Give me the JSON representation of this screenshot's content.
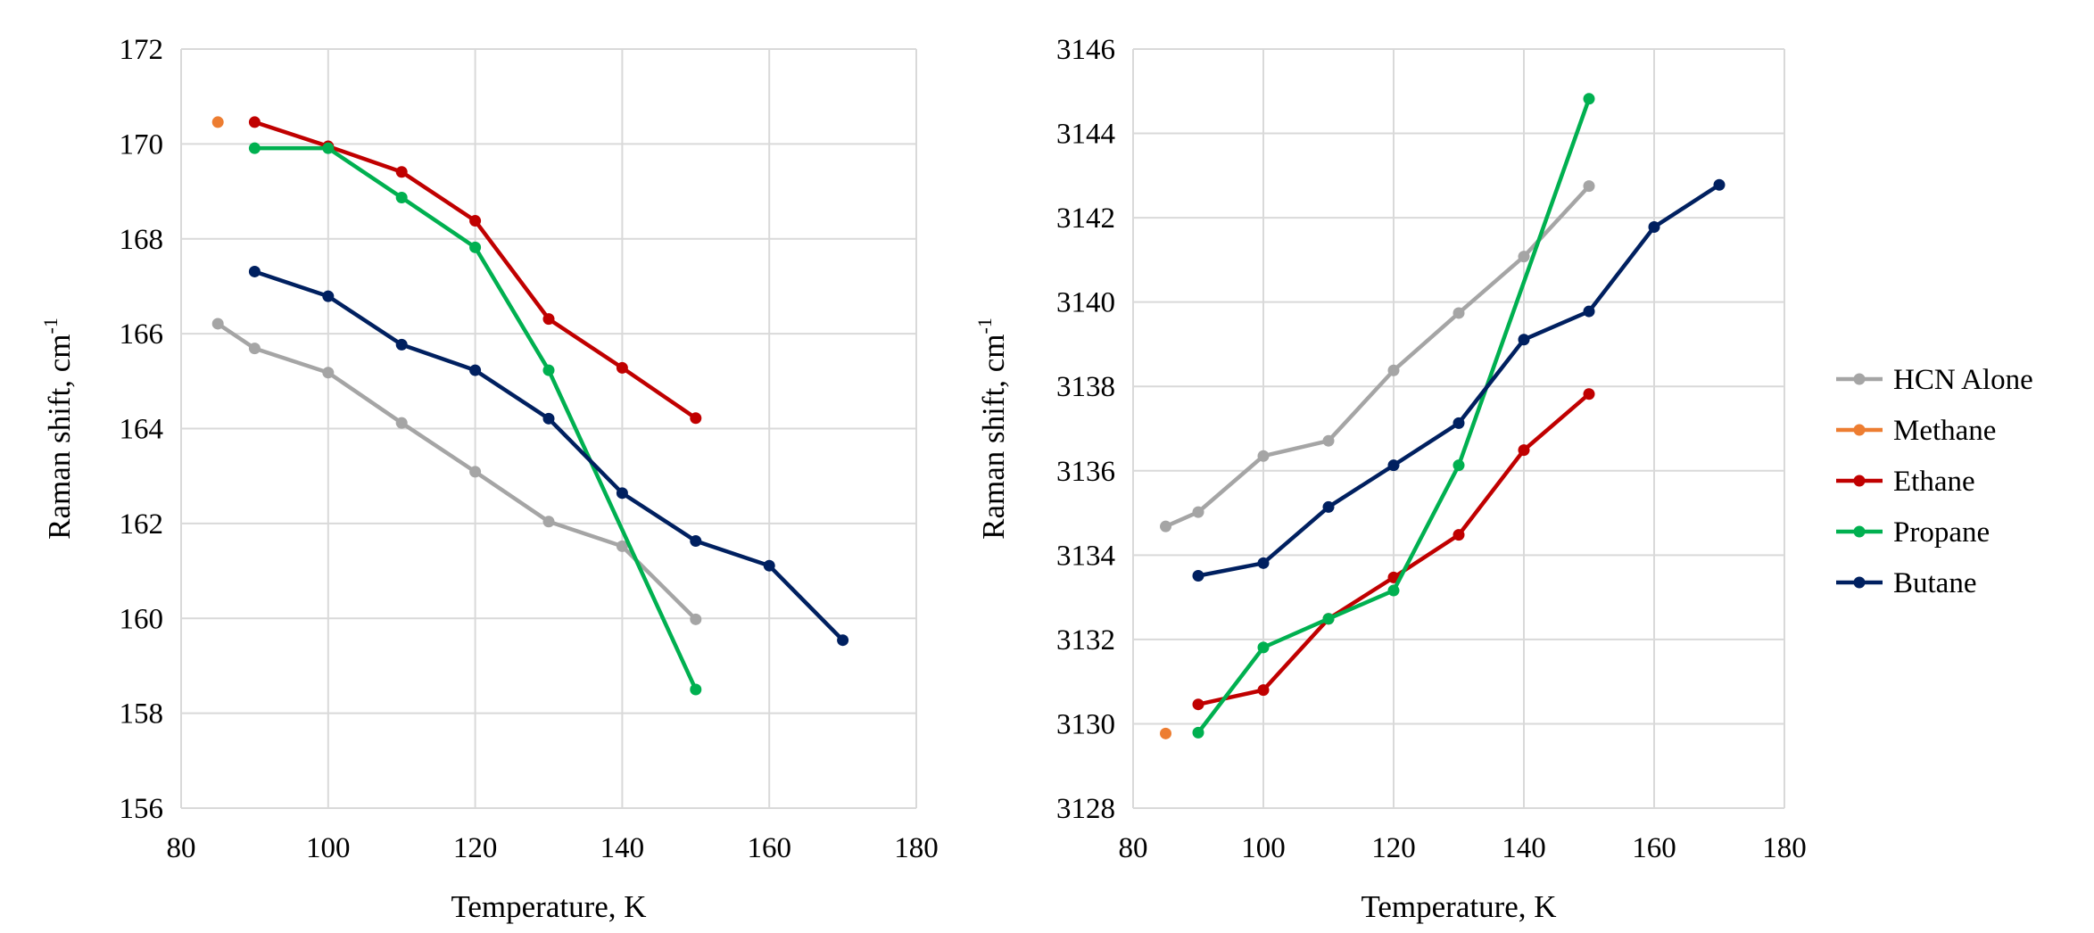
{
  "colors": {
    "HCN Alone": "#a5a5a5",
    "Methane": "#ed7d31",
    "Ethane": "#c00000",
    "Propane": "#00b050",
    "Butane": "#002060"
  },
  "legend": {
    "placement": "right",
    "entries": [
      "HCN Alone",
      "Methane",
      "Ethane",
      "Propane",
      "Butane"
    ]
  },
  "chart_data": [
    {
      "type": "line",
      "xlabel": "Temperature, K",
      "ylabel": "Raman shift, cm",
      "ylabel_sup": "-1",
      "xlim": [
        80,
        180
      ],
      "ylim": [
        156,
        172
      ],
      "xticks": [
        80,
        100,
        120,
        140,
        160,
        180
      ],
      "yticks": [
        156,
        158,
        160,
        162,
        164,
        166,
        168,
        170,
        172
      ],
      "grid": true,
      "series": [
        {
          "name": "HCN Alone",
          "x": [
            85,
            90,
            100,
            110,
            120,
            130,
            140,
            150
          ],
          "y": [
            166.21,
            165.69,
            165.18,
            164.12,
            163.09,
            162.04,
            161.52,
            159.98
          ]
        },
        {
          "name": "Methane",
          "x": [
            85
          ],
          "y": [
            170.46
          ]
        },
        {
          "name": "Ethane",
          "x": [
            90,
            100,
            110,
            120,
            130,
            140,
            150
          ],
          "y": [
            170.46,
            169.95,
            169.41,
            168.38,
            166.31,
            165.28,
            164.22
          ]
        },
        {
          "name": "Propane",
          "x": [
            90,
            100,
            110,
            120,
            130,
            150
          ],
          "y": [
            169.91,
            169.91,
            168.87,
            167.82,
            165.23,
            158.5
          ]
        },
        {
          "name": "Butane",
          "x": [
            90,
            100,
            110,
            120,
            130,
            140,
            150,
            160,
            170
          ],
          "y": [
            167.31,
            166.79,
            165.77,
            165.23,
            164.21,
            162.64,
            161.63,
            161.11,
            159.54
          ]
        }
      ]
    },
    {
      "type": "line",
      "xlabel": "Temperature, K",
      "ylabel": "Raman shift, cm",
      "ylabel_sup": "-1",
      "xlim": [
        80,
        180
      ],
      "ylim": [
        3128,
        3146
      ],
      "xticks": [
        80,
        100,
        120,
        140,
        160,
        180
      ],
      "yticks": [
        3128,
        3130,
        3132,
        3134,
        3136,
        3138,
        3140,
        3142,
        3144,
        3146
      ],
      "grid": true,
      "series": [
        {
          "name": "HCN Alone",
          "x": [
            85,
            90,
            100,
            110,
            120,
            130,
            140,
            150
          ],
          "y": [
            3134.68,
            3135.02,
            3136.35,
            3136.71,
            3138.38,
            3139.74,
            3141.08,
            3142.75
          ]
        },
        {
          "name": "Methane",
          "x": [
            85
          ],
          "y": [
            3129.77
          ]
        },
        {
          "name": "Ethane",
          "x": [
            90,
            100,
            110,
            120,
            130,
            140,
            150
          ],
          "y": [
            3130.46,
            3130.8,
            3132.49,
            3133.47,
            3134.48,
            3136.49,
            3137.82
          ]
        },
        {
          "name": "Propane",
          "x": [
            90,
            100,
            110,
            120,
            130,
            150
          ],
          "y": [
            3129.79,
            3131.81,
            3132.49,
            3133.16,
            3136.13,
            3144.82
          ]
        },
        {
          "name": "Butane",
          "x": [
            90,
            100,
            110,
            120,
            130,
            140,
            150,
            160,
            170
          ],
          "y": [
            3133.51,
            3133.81,
            3135.14,
            3136.13,
            3137.13,
            3139.11,
            3139.78,
            3141.78,
            3142.78
          ]
        }
      ]
    }
  ]
}
